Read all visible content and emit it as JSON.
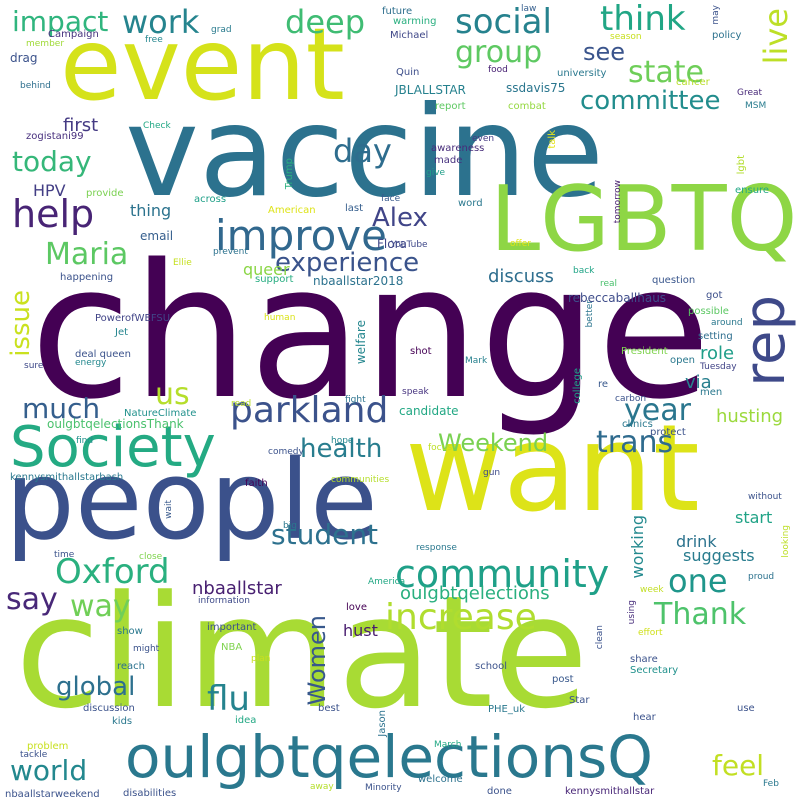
{
  "title": "Word cloud",
  "words": [
    {
      "text": "change",
      "color": "#440154"
    },
    {
      "text": "climate",
      "color": "#a8db34"
    },
    {
      "text": "vaccine",
      "color": "#2c728e"
    },
    {
      "text": "want",
      "color": "#dde318"
    },
    {
      "text": "people",
      "color": "#3b518b"
    },
    {
      "text": "event",
      "color": "#d5e21a"
    },
    {
      "text": "LGBTQ",
      "color": "#8ed645"
    },
    {
      "text": "oulgbtqelectionsQ",
      "color": "#2a788e"
    },
    {
      "text": "Society",
      "color": "#24aa83"
    },
    {
      "text": "improve",
      "color": "#31688e"
    },
    {
      "text": "rep",
      "color": "#3e4989"
    },
    {
      "text": "parkland",
      "color": "#3b528b"
    },
    {
      "text": "community",
      "color": "#1fa088"
    },
    {
      "text": "increase",
      "color": "#b0dd2f"
    },
    {
      "text": "Oxford",
      "color": "#2ab07f"
    },
    {
      "text": "social",
      "color": "#26828e"
    },
    {
      "text": "think",
      "color": "#21a685"
    },
    {
      "text": "group",
      "color": "#5ec962"
    },
    {
      "text": "committee",
      "color": "#228d8d"
    },
    {
      "text": "state",
      "color": "#6ece58"
    },
    {
      "text": "live",
      "color": "#bddf26"
    },
    {
      "text": "work",
      "color": "#25848e"
    },
    {
      "text": "deep",
      "color": "#3fbc73"
    },
    {
      "text": "impact",
      "color": "#30b57e"
    },
    {
      "text": "help",
      "color": "#482475"
    },
    {
      "text": "day",
      "color": "#2e6d8e"
    },
    {
      "text": "today",
      "color": "#35b779"
    },
    {
      "text": "Maria",
      "color": "#5cc863"
    },
    {
      "text": "Alex",
      "color": "#404588"
    },
    {
      "text": "experience",
      "color": "#3a538b"
    },
    {
      "text": "issue",
      "color": "#cae11f"
    },
    {
      "text": "much",
      "color": "#355f8d"
    },
    {
      "text": "us",
      "color": "#b5de2b"
    },
    {
      "text": "year",
      "color": "#2a768e"
    },
    {
      "text": "trans",
      "color": "#2f6b8e"
    },
    {
      "text": "health",
      "color": "#287d8e"
    },
    {
      "text": "Weekend",
      "color": "#7ad151"
    },
    {
      "text": "one",
      "color": "#1f968b"
    },
    {
      "text": "say",
      "color": "#482878"
    },
    {
      "text": "way",
      "color": "#70cf57"
    },
    {
      "text": "student",
      "color": "#2d718e"
    },
    {
      "text": "Women",
      "color": "#38588c"
    },
    {
      "text": "Thank",
      "color": "#4ec36b"
    },
    {
      "text": "global",
      "color": "#2d708e"
    },
    {
      "text": "flu",
      "color": "#25838e"
    },
    {
      "text": "world",
      "color": "#23888e"
    },
    {
      "text": "feel",
      "color": "#c2df23"
    },
    {
      "text": "see",
      "color": "#3a548c"
    },
    {
      "text": "first",
      "color": "#443a83"
    },
    {
      "text": "HPV",
      "color": "#433e85"
    },
    {
      "text": "thing",
      "color": "#2c738e"
    },
    {
      "text": "queer",
      "color": "#8bd646"
    },
    {
      "text": "discuss",
      "color": "#2e6e8e"
    },
    {
      "text": "role",
      "color": "#1f9e89"
    },
    {
      "text": "via",
      "color": "#277f8e"
    },
    {
      "text": "husting",
      "color": "#9bd93c"
    },
    {
      "text": "nbaallstar",
      "color": "#482071"
    },
    {
      "text": "oulgbtqelections",
      "color": "#29af7f"
    },
    {
      "text": "start",
      "color": "#20a386"
    },
    {
      "text": "suggests",
      "color": "#287c8e"
    },
    {
      "text": "drink",
      "color": "#2c738e"
    },
    {
      "text": "working",
      "color": "#23898e"
    },
    {
      "text": "hust",
      "color": "#481c6e"
    },
    {
      "text": "candidate",
      "color": "#22a884"
    },
    {
      "text": "oulgbtqelectionsThank",
      "color": "#4ac16d"
    },
    {
      "text": "welfare",
      "color": "#24868e"
    },
    {
      "text": "email",
      "color": "#355e8d"
    },
    {
      "text": "Flora",
      "color": "#3f4788"
    },
    {
      "text": "JBLALLSTAR",
      "color": "#26818e"
    },
    {
      "text": "ssdavis75",
      "color": "#2a768e"
    },
    {
      "text": "nbaallstar2018",
      "color": "#2c728e"
    },
    {
      "text": "rebeccaballhaus",
      "color": "#3e4c8a"
    },
    {
      "text": "PowerofWEFSU",
      "color": "#414487"
    },
    {
      "text": "kennysmithallstarbash",
      "color": "#2a788e"
    },
    {
      "text": "zogistani99",
      "color": "#472f7d"
    },
    {
      "text": "NatureClimate",
      "color": "#21918c"
    },
    {
      "text": "nbaallstarweekend",
      "color": "#3b528b"
    },
    {
      "text": "kennysmithallstar",
      "color": "#482677"
    },
    {
      "text": "Campaign",
      "color": "#46327e"
    },
    {
      "text": "member",
      "color": "#a0da39"
    },
    {
      "text": "free",
      "color": "#24868e"
    },
    {
      "text": "grad",
      "color": "#297b8e"
    },
    {
      "text": "future",
      "color": "#2e6f8e"
    },
    {
      "text": "law",
      "color": "#355f8d"
    },
    {
      "text": "warming",
      "color": "#29af7f"
    },
    {
      "text": "Michael",
      "color": "#3f4788"
    },
    {
      "text": "policy",
      "color": "#2c728e"
    },
    {
      "text": "season",
      "color": "#c8e020"
    },
    {
      "text": "drag",
      "color": "#3b528b"
    },
    {
      "text": "Quin",
      "color": "#3d4e8a"
    },
    {
      "text": "university",
      "color": "#2a788e"
    },
    {
      "text": "cancer",
      "color": "#b8de29"
    },
    {
      "text": "food",
      "color": "#482173"
    },
    {
      "text": "Great",
      "color": "#482979"
    },
    {
      "text": "behind",
      "color": "#2e6f8e"
    },
    {
      "text": "report",
      "color": "#5ec962"
    },
    {
      "text": "combat",
      "color": "#95d840"
    },
    {
      "text": "MSM",
      "color": "#287c8e"
    },
    {
      "text": "Check",
      "color": "#22a884"
    },
    {
      "text": "even",
      "color": "#443983"
    },
    {
      "text": "talk",
      "color": "#e5e419"
    },
    {
      "text": "awareness",
      "color": "#472c7a"
    },
    {
      "text": "made",
      "color": "#46307e"
    },
    {
      "text": "lgbt",
      "color": "#b2dd2d"
    },
    {
      "text": "give",
      "color": "#1f9f88"
    },
    {
      "text": "provide",
      "color": "#7ad151"
    },
    {
      "text": "ensure",
      "color": "#22a785"
    },
    {
      "text": "across",
      "color": "#1fa088"
    },
    {
      "text": "Trump",
      "color": "#2ab07f"
    },
    {
      "text": "face",
      "color": "#38598c"
    },
    {
      "text": "word",
      "color": "#2a788e"
    },
    {
      "text": "American",
      "color": "#dde318"
    },
    {
      "text": "last",
      "color": "#355e8d"
    },
    {
      "text": "tomorrow",
      "color": "#481f70"
    },
    {
      "text": "offer",
      "color": "#e2e418"
    },
    {
      "text": "prevent",
      "color": "#2c728e"
    },
    {
      "text": "YouTube",
      "color": "#3f4889"
    },
    {
      "text": "Ellie",
      "color": "#c5e021"
    },
    {
      "text": "happening",
      "color": "#3b528b"
    },
    {
      "text": "support",
      "color": "#27ad81"
    },
    {
      "text": "back",
      "color": "#20a486"
    },
    {
      "text": "question",
      "color": "#39568c"
    },
    {
      "text": "real",
      "color": "#4ac16d"
    },
    {
      "text": "better",
      "color": "#2b758e"
    },
    {
      "text": "got",
      "color": "#3c4f8a"
    },
    {
      "text": "Jet",
      "color": "#25858e"
    },
    {
      "text": "human",
      "color": "#dae319"
    },
    {
      "text": "possible",
      "color": "#5cc863"
    },
    {
      "text": "around",
      "color": "#2a788e"
    },
    {
      "text": "deal queen",
      "color": "#3b528b"
    },
    {
      "text": "energy",
      "color": "#23888e"
    },
    {
      "text": "setting",
      "color": "#2e6e8e"
    },
    {
      "text": "President",
      "color": "#7fd34e"
    },
    {
      "text": "shot",
      "color": "#440154"
    },
    {
      "text": "Mark",
      "color": "#26818e"
    },
    {
      "text": "open",
      "color": "#2a788e"
    },
    {
      "text": "Tuesday",
      "color": "#414487"
    },
    {
      "text": "sure",
      "color": "#3e4989"
    },
    {
      "text": "speak",
      "color": "#46337f"
    },
    {
      "text": "college",
      "color": "#1fa088"
    },
    {
      "text": "re",
      "color": "#38588c"
    },
    {
      "text": "carbon",
      "color": "#3b528b"
    },
    {
      "text": "men",
      "color": "#2a788e"
    },
    {
      "text": "read",
      "color": "#b8de29"
    },
    {
      "text": "fight",
      "color": "#2c738e"
    },
    {
      "text": "protect",
      "color": "#3b528b"
    },
    {
      "text": "clinics",
      "color": "#2a788e"
    },
    {
      "text": "find",
      "color": "#21918c"
    },
    {
      "text": "hope",
      "color": "#24868e"
    },
    {
      "text": "focus",
      "color": "#bddf26"
    },
    {
      "text": "comedy",
      "color": "#3b528b"
    },
    {
      "text": "faith",
      "color": "#440154"
    },
    {
      "text": "communities",
      "color": "#b5de2b"
    },
    {
      "text": "gun",
      "color": "#3e4a89"
    },
    {
      "text": "without",
      "color": "#3b528b"
    },
    {
      "text": "wait",
      "color": "#38598c"
    },
    {
      "text": "big",
      "color": "#2a788e"
    },
    {
      "text": "looking",
      "color": "#bddf26"
    },
    {
      "text": "response",
      "color": "#2a788e"
    },
    {
      "text": "time",
      "color": "#3b528b"
    },
    {
      "text": "close",
      "color": "#7fd34e"
    },
    {
      "text": "America",
      "color": "#22a884"
    },
    {
      "text": "proud",
      "color": "#2c728e"
    },
    {
      "text": "week",
      "color": "#c2df23"
    },
    {
      "text": "information",
      "color": "#3e4a89"
    },
    {
      "text": "using",
      "color": "#472d7b"
    },
    {
      "text": "clean",
      "color": "#3b528b"
    },
    {
      "text": "effort",
      "color": "#d0e11c"
    },
    {
      "text": "love",
      "color": "#440154"
    },
    {
      "text": "show",
      "color": "#2a788e"
    },
    {
      "text": "important",
      "color": "#3b528b"
    },
    {
      "text": "might",
      "color": "#3b528b"
    },
    {
      "text": "NBA",
      "color": "#7fd34e"
    },
    {
      "text": "plan",
      "color": "#c8e020"
    },
    {
      "text": "reach",
      "color": "#2c728e"
    },
    {
      "text": "school",
      "color": "#3b528b"
    },
    {
      "text": "post",
      "color": "#38588c"
    },
    {
      "text": "share",
      "color": "#3b528b"
    },
    {
      "text": "Secretary",
      "color": "#21918c"
    },
    {
      "text": "discussion",
      "color": "#3b528b"
    },
    {
      "text": "kids",
      "color": "#2a788e"
    },
    {
      "text": "idea",
      "color": "#22a884"
    },
    {
      "text": "best",
      "color": "#3b528b"
    },
    {
      "text": "Jason",
      "color": "#2c728e"
    },
    {
      "text": "PHE_uk",
      "color": "#2a788e"
    },
    {
      "text": "Star",
      "color": "#3b528b"
    },
    {
      "text": "use",
      "color": "#3b528b"
    },
    {
      "text": "hear",
      "color": "#3b528b"
    },
    {
      "text": "problem",
      "color": "#c8e020"
    },
    {
      "text": "tackle",
      "color": "#3b528b"
    },
    {
      "text": "March",
      "color": "#22a884"
    },
    {
      "text": "disabilities",
      "color": "#3b528b"
    },
    {
      "text": "away",
      "color": "#b5de2b"
    },
    {
      "text": "Minority",
      "color": "#3b528b"
    },
    {
      "text": "welcome",
      "color": "#2c728e"
    },
    {
      "text": "done",
      "color": "#3b528b"
    },
    {
      "text": "Feb",
      "color": "#2a788e"
    },
    {
      "text": "may",
      "color": "#3b528b"
    }
  ]
}
